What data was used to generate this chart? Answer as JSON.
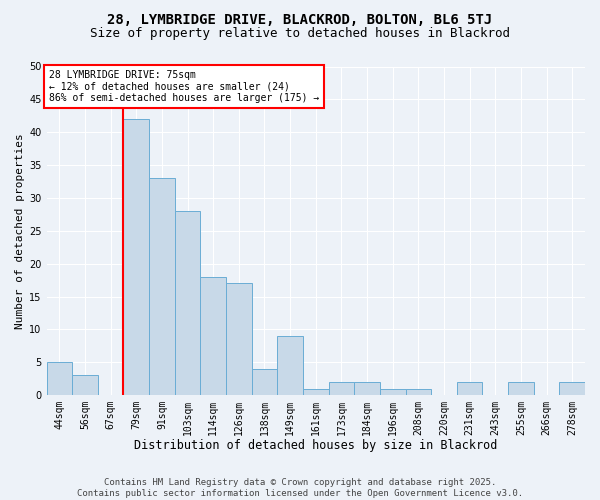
{
  "title1": "28, LYMBRIDGE DRIVE, BLACKROD, BOLTON, BL6 5TJ",
  "title2": "Size of property relative to detached houses in Blackrod",
  "xlabel": "Distribution of detached houses by size in Blackrod",
  "ylabel": "Number of detached properties",
  "categories": [
    "44sqm",
    "56sqm",
    "67sqm",
    "79sqm",
    "91sqm",
    "103sqm",
    "114sqm",
    "126sqm",
    "138sqm",
    "149sqm",
    "161sqm",
    "173sqm",
    "184sqm",
    "196sqm",
    "208sqm",
    "220sqm",
    "231sqm",
    "243sqm",
    "255sqm",
    "266sqm",
    "278sqm"
  ],
  "values": [
    5,
    3,
    0,
    42,
    33,
    28,
    18,
    17,
    4,
    9,
    1,
    2,
    2,
    1,
    1,
    0,
    2,
    0,
    2,
    0,
    2
  ],
  "bar_color": "#c8d9e8",
  "bar_edge_color": "#6aadd5",
  "annotation_text_line1": "28 LYMBRIDGE DRIVE: 75sqm",
  "annotation_text_line2": "← 12% of detached houses are smaller (24)",
  "annotation_text_line3": "86% of semi-detached houses are larger (175) →",
  "annotation_box_color": "white",
  "annotation_box_edge_color": "red",
  "vline_color": "red",
  "vline_x_index": 2.5,
  "ylim": [
    0,
    50
  ],
  "yticks": [
    0,
    5,
    10,
    15,
    20,
    25,
    30,
    35,
    40,
    45,
    50
  ],
  "footer": "Contains HM Land Registry data © Crown copyright and database right 2025.\nContains public sector information licensed under the Open Government Licence v3.0.",
  "bg_color": "#edf2f8",
  "plot_bg_color": "#edf2f8",
  "grid_color": "#ffffff",
  "title1_fontsize": 10,
  "title2_fontsize": 9,
  "xlabel_fontsize": 8.5,
  "ylabel_fontsize": 8,
  "tick_fontsize": 7,
  "footer_fontsize": 6.5
}
